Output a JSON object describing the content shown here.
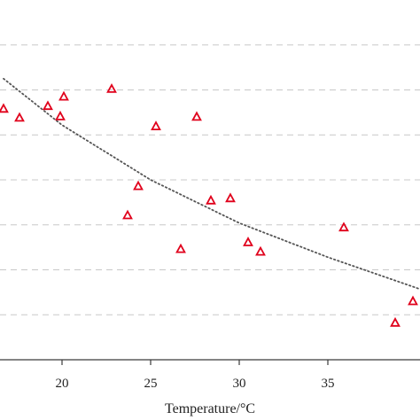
{
  "chart_data": {
    "type": "scatter",
    "title": "",
    "xlabel": "Temperature/°C",
    "ylabel": "",
    "xlim": [
      16.5,
      40.2
    ],
    "ylim": [
      0,
      8
    ],
    "x_ticks": [
      20,
      25,
      30,
      35
    ],
    "y_grid_levels": [
      1,
      2,
      3,
      4,
      5,
      6,
      7
    ],
    "grid": "horizontal dashed",
    "legend": "none",
    "series": [
      {
        "marker": "open triangle",
        "color": "#e0001b",
        "points": [
          {
            "x": 16.7,
            "y": 5.58
          },
          {
            "x": 17.6,
            "y": 5.38
          },
          {
            "x": 19.2,
            "y": 5.64
          },
          {
            "x": 19.9,
            "y": 5.41
          },
          {
            "x": 20.1,
            "y": 5.85
          },
          {
            "x": 22.8,
            "y": 6.02
          },
          {
            "x": 23.7,
            "y": 3.21
          },
          {
            "x": 24.3,
            "y": 3.86
          },
          {
            "x": 25.3,
            "y": 5.19
          },
          {
            "x": 26.7,
            "y": 2.46
          },
          {
            "x": 27.6,
            "y": 5.4
          },
          {
            "x": 28.4,
            "y": 3.54
          },
          {
            "x": 29.5,
            "y": 3.59
          },
          {
            "x": 30.5,
            "y": 2.61
          },
          {
            "x": 31.2,
            "y": 2.4
          },
          {
            "x": 35.9,
            "y": 2.94
          },
          {
            "x": 38.8,
            "y": 0.82
          },
          {
            "x": 39.8,
            "y": 1.3
          }
        ]
      }
    ],
    "trendline": {
      "style": "dotted",
      "color": "#555555",
      "points": [
        {
          "x": 16.7,
          "y": 6.25
        },
        {
          "x": 20.0,
          "y": 5.22
        },
        {
          "x": 25.0,
          "y": 4.0
        },
        {
          "x": 30.0,
          "y": 3.04
        },
        {
          "x": 35.0,
          "y": 2.28
        },
        {
          "x": 40.2,
          "y": 1.57
        }
      ]
    }
  }
}
